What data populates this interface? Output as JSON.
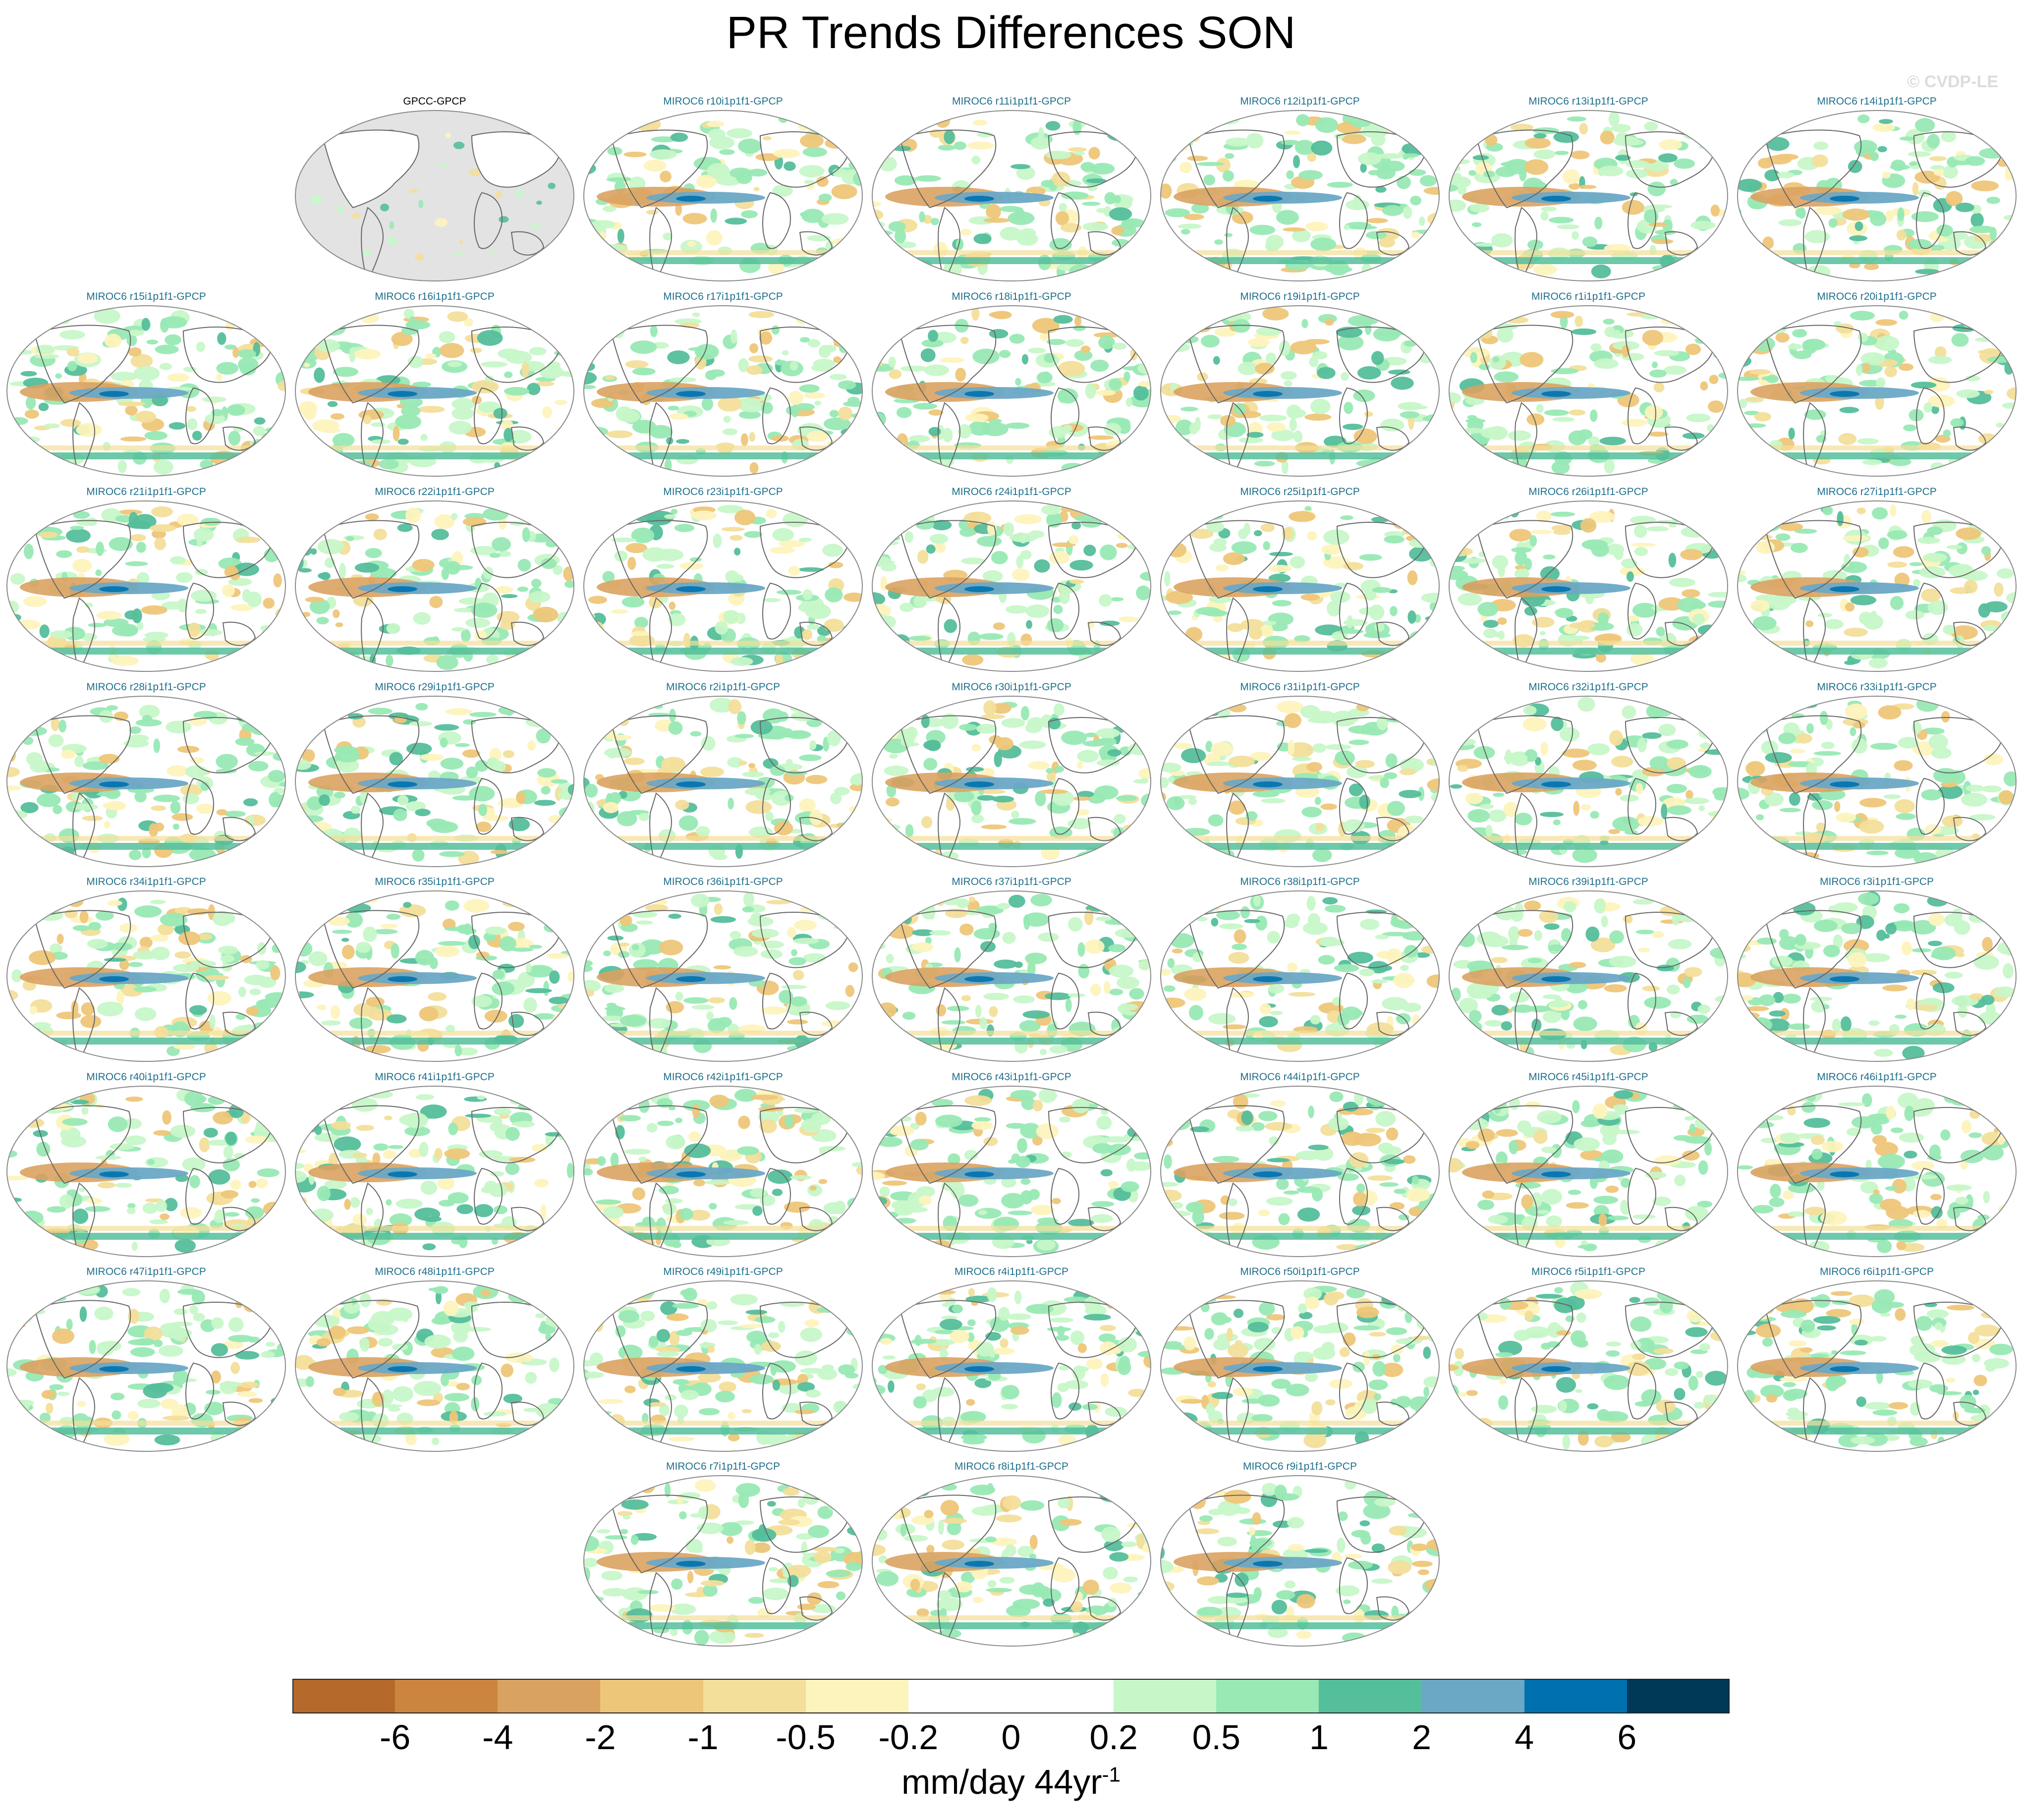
{
  "title": "PR Trends Differences SON",
  "watermark": "© CVDP-LE",
  "unit": {
    "base": "mm/day 44yr",
    "exponent": "-1"
  },
  "colorbar": {
    "ticks": [
      "-6",
      "-4",
      "-2",
      "-1",
      "-0.5",
      "-0.2",
      "0",
      "0.2",
      "0.5",
      "1",
      "2",
      "4",
      "6"
    ],
    "colors": [
      "#b5692a",
      "#cc853f",
      "#daa260",
      "#eec679",
      "#f3de9a",
      "#fdf3bd",
      "#ffffff",
      "#ffffff",
      "#c7f7c8",
      "#98e9b4",
      "#55be9b",
      "#6aa8c6",
      "#0071ae",
      "#003857"
    ]
  },
  "map_colors": {
    "ocean_obs": "#e3e3e3",
    "coast": "#666666",
    "frame": "#8a8a8a"
  },
  "panels": [
    "GPCC-GPCP",
    "MIROC6 r10i1p1f1-GPCP",
    "MIROC6 r11i1p1f1-GPCP",
    "MIROC6 r12i1p1f1-GPCP",
    "MIROC6 r13i1p1f1-GPCP",
    "MIROC6 r14i1p1f1-GPCP",
    "MIROC6 r15i1p1f1-GPCP",
    "MIROC6 r16i1p1f1-GPCP",
    "MIROC6 r17i1p1f1-GPCP",
    "MIROC6 r18i1p1f1-GPCP",
    "MIROC6 r19i1p1f1-GPCP",
    "MIROC6 r1i1p1f1-GPCP",
    "MIROC6 r20i1p1f1-GPCP",
    "MIROC6 r21i1p1f1-GPCP",
    "MIROC6 r22i1p1f1-GPCP",
    "MIROC6 r23i1p1f1-GPCP",
    "MIROC6 r24i1p1f1-GPCP",
    "MIROC6 r25i1p1f1-GPCP",
    "MIROC6 r26i1p1f1-GPCP",
    "MIROC6 r27i1p1f1-GPCP",
    "MIROC6 r28i1p1f1-GPCP",
    "MIROC6 r29i1p1f1-GPCP",
    "MIROC6 r2i1p1f1-GPCP",
    "MIROC6 r30i1p1f1-GPCP",
    "MIROC6 r31i1p1f1-GPCP",
    "MIROC6 r32i1p1f1-GPCP",
    "MIROC6 r33i1p1f1-GPCP",
    "MIROC6 r34i1p1f1-GPCP",
    "MIROC6 r35i1p1f1-GPCP",
    "MIROC6 r36i1p1f1-GPCP",
    "MIROC6 r37i1p1f1-GPCP",
    "MIROC6 r38i1p1f1-GPCP",
    "MIROC6 r39i1p1f1-GPCP",
    "MIROC6 r3i1p1f1-GPCP",
    "MIROC6 r40i1p1f1-GPCP",
    "MIROC6 r41i1p1f1-GPCP",
    "MIROC6 r42i1p1f1-GPCP",
    "MIROC6 r43i1p1f1-GPCP",
    "MIROC6 r44i1p1f1-GPCP",
    "MIROC6 r45i1p1f1-GPCP",
    "MIROC6 r46i1p1f1-GPCP",
    "MIROC6 r47i1p1f1-GPCP",
    "MIROC6 r48i1p1f1-GPCP",
    "MIROC6 r49i1p1f1-GPCP",
    "MIROC6 r4i1p1f1-GPCP",
    "MIROC6 r50i1p1f1-GPCP",
    "MIROC6 r5i1p1f1-GPCP",
    "MIROC6 r6i1p1f1-GPCP",
    "MIROC6 r7i1p1f1-GPCP",
    "MIROC6 r8i1p1f1-GPCP",
    "MIROC6 r9i1p1f1-GPCP"
  ]
}
